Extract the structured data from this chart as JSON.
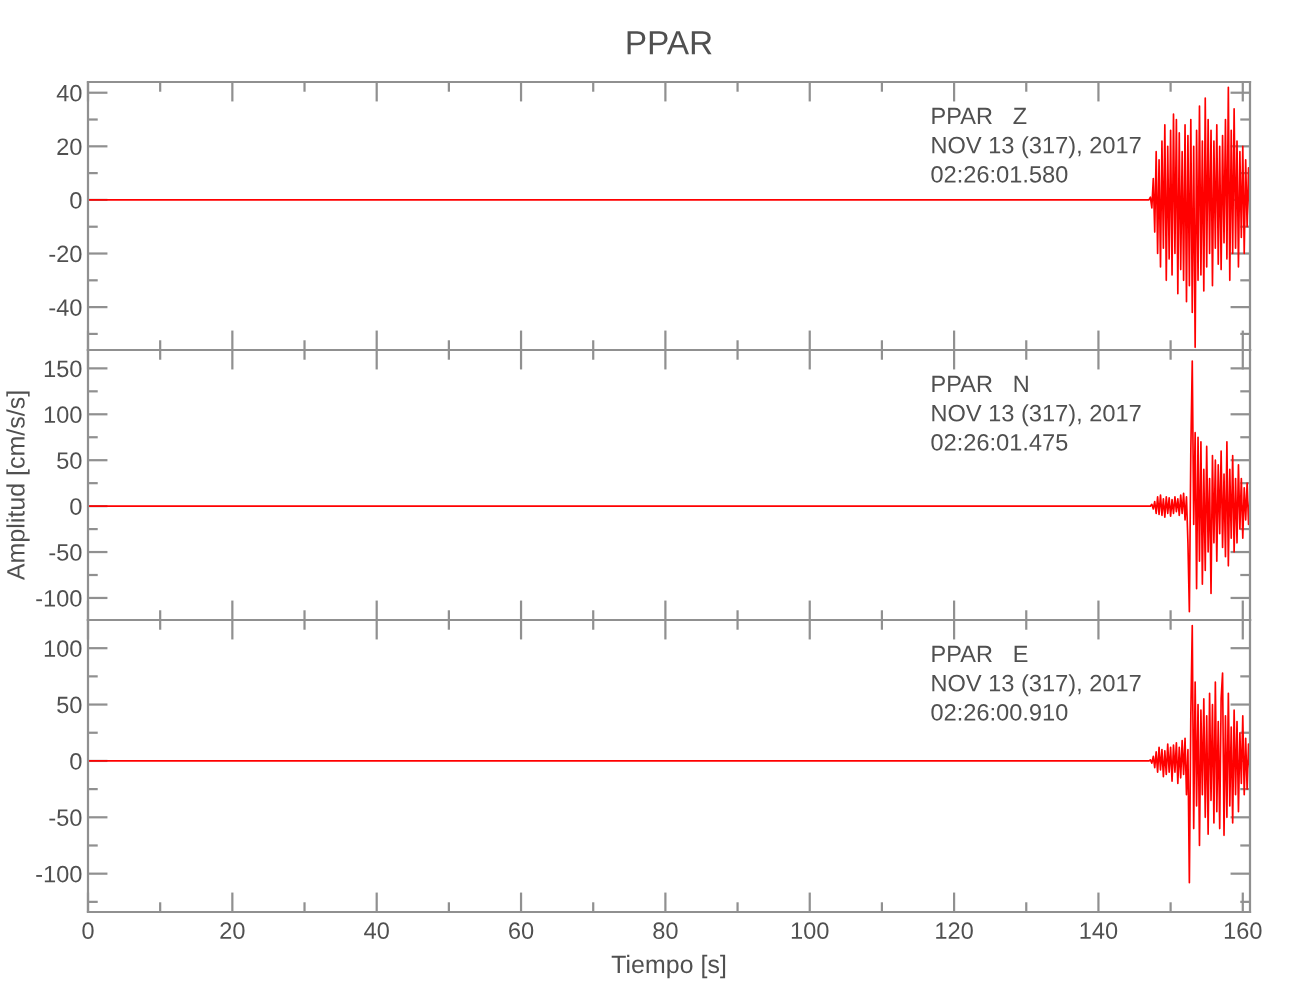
{
  "chart_data": [
    {
      "type": "line",
      "title": "PPAR",
      "x": [
        0,
        10,
        20,
        30,
        40,
        50,
        60,
        70,
        80,
        90,
        100,
        110,
        120,
        130,
        140,
        146,
        147,
        147.2,
        147.4,
        147.6,
        147.8,
        148,
        148.2,
        148.4,
        148.6,
        148.8,
        149,
        149.2,
        149.4,
        149.6,
        149.8,
        150,
        150.2,
        150.4,
        150.6,
        150.8,
        151,
        151.2,
        151.4,
        151.6,
        151.8,
        152,
        152.2,
        152.4,
        152.6,
        152.8,
        153,
        153.2,
        153.4,
        153.6,
        153.8,
        154,
        154.2,
        154.4,
        154.6,
        154.8,
        155,
        155.2,
        155.4,
        155.6,
        155.8,
        156,
        156.2,
        156.4,
        156.6,
        156.8,
        157,
        157.2,
        157.4,
        157.6,
        157.8,
        158,
        158.2,
        158.4,
        158.6,
        158.8,
        159,
        159.2,
        159.4,
        159.6,
        159.8,
        160,
        160.2,
        160.4,
        160.6,
        160.8,
        161
      ],
      "series": [
        {
          "color": "#ff0000",
          "values": [
            0,
            0,
            0,
            0,
            0,
            0,
            0,
            0,
            0,
            0,
            0,
            0,
            0,
            0,
            0,
            0,
            0,
            1,
            -3,
            8,
            -12,
            18,
            -20,
            15,
            -25,
            22,
            -18,
            28,
            -30,
            20,
            -22,
            26,
            -28,
            32,
            -20,
            30,
            -35,
            25,
            -26,
            18,
            -30,
            28,
            -38,
            24,
            -32,
            30,
            -42,
            20,
            -55,
            26,
            -30,
            35,
            -28,
            22,
            -34,
            38,
            -25,
            30,
            -20,
            26,
            -32,
            22,
            -18,
            28,
            -24,
            20,
            -26,
            24,
            -16,
            30,
            -22,
            42,
            -30,
            26,
            -20,
            34,
            -18,
            22,
            -25,
            18,
            -14,
            20,
            -20,
            15,
            -10,
            12,
            -8
          ]
        }
      ],
      "xlim": [
        0,
        161
      ],
      "xticks": [
        0,
        {
          "value": 10,
          "label": null
        },
        20,
        {
          "value": 30,
          "label": null
        },
        40,
        {
          "value": 50,
          "label": null
        },
        60,
        {
          "value": 70,
          "label": null
        },
        80,
        {
          "value": 90,
          "label": null
        },
        100,
        {
          "value": 110,
          "label": null
        },
        120,
        {
          "value": 130,
          "label": null
        },
        140,
        {
          "value": 150,
          "label": null
        },
        160
      ],
      "ylim": [
        -56,
        44
      ],
      "yticks": [
        {
          "value": -50,
          "label": null
        },
        -40,
        {
          "value": -30,
          "label": null
        },
        -20,
        {
          "value": -10,
          "label": null
        },
        0,
        {
          "value": 10,
          "label": null
        },
        20,
        {
          "value": 30,
          "label": null
        },
        40
      ],
      "tick_labels": "y",
      "annotations": [
        "PPAR   Z",
        "NOV 13 (317), 2017",
        "02:26:01.580"
      ]
    },
    {
      "type": "line",
      "ylabel": "Amplitud [cm/s/s]",
      "x": [
        0,
        10,
        20,
        30,
        40,
        50,
        60,
        70,
        80,
        90,
        100,
        110,
        120,
        130,
        140,
        146,
        147,
        147.2,
        147.4,
        147.6,
        147.8,
        148,
        148.2,
        148.4,
        148.6,
        148.8,
        149,
        149.2,
        149.4,
        149.6,
        149.8,
        150,
        150.2,
        150.4,
        150.6,
        150.8,
        151,
        151.2,
        151.4,
        151.6,
        151.8,
        152,
        152.2,
        152.4,
        152.6,
        152.8,
        153,
        153.2,
        153.4,
        153.6,
        153.8,
        154,
        154.2,
        154.4,
        154.6,
        154.8,
        155,
        155.2,
        155.4,
        155.6,
        155.8,
        156,
        156.2,
        156.4,
        156.6,
        156.8,
        157,
        157.2,
        157.4,
        157.6,
        157.8,
        158,
        158.2,
        158.4,
        158.6,
        158.8,
        159,
        159.2,
        159.4,
        159.6,
        159.8,
        160,
        160.2,
        160.4,
        160.6,
        160.8,
        161
      ],
      "series": [
        {
          "color": "#ff0000",
          "values": [
            0,
            0,
            0,
            0,
            0,
            0,
            0,
            0,
            0,
            0,
            0,
            0,
            0,
            0,
            0,
            0,
            0,
            0,
            2,
            -3,
            5,
            -8,
            10,
            -9,
            12,
            -10,
            8,
            -12,
            10,
            -8,
            9,
            -11,
            7,
            -8,
            10,
            -6,
            8,
            -10,
            12,
            -8,
            14,
            -15,
            10,
            -40,
            -115,
            60,
            158,
            -20,
            80,
            -90,
            75,
            -60,
            70,
            -85,
            40,
            -70,
            65,
            -50,
            30,
            -95,
            55,
            -40,
            50,
            -60,
            45,
            -30,
            60,
            -45,
            35,
            -55,
            70,
            -65,
            40,
            -35,
            55,
            -50,
            30,
            -40,
            45,
            -25,
            30,
            -35,
            20,
            -15,
            25,
            -20,
            10
          ]
        }
      ],
      "xlim": [
        0,
        161
      ],
      "xticks": [
        0,
        {
          "value": 10,
          "label": null
        },
        20,
        {
          "value": 30,
          "label": null
        },
        40,
        {
          "value": 50,
          "label": null
        },
        60,
        {
          "value": 70,
          "label": null
        },
        80,
        {
          "value": 90,
          "label": null
        },
        100,
        {
          "value": 110,
          "label": null
        },
        120,
        {
          "value": 130,
          "label": null
        },
        140,
        {
          "value": 150,
          "label": null
        },
        160
      ],
      "ylim": [
        -124,
        170
      ],
      "yticks": [
        -100,
        {
          "value": -75,
          "label": null
        },
        -50,
        {
          "value": -25,
          "label": null
        },
        0,
        {
          "value": 25,
          "label": null
        },
        50,
        {
          "value": 75,
          "label": null
        },
        100,
        {
          "value": 125,
          "label": null
        },
        150
      ],
      "tick_labels": "y",
      "annotations": [
        "PPAR   N",
        "NOV 13 (317), 2017",
        "02:26:01.475"
      ]
    },
    {
      "type": "line",
      "xlabel": "Tiempo [s]",
      "x": [
        0,
        10,
        20,
        30,
        40,
        50,
        60,
        70,
        80,
        90,
        100,
        110,
        120,
        130,
        140,
        146,
        147,
        147.2,
        147.4,
        147.6,
        147.8,
        148,
        148.2,
        148.4,
        148.6,
        148.8,
        149,
        149.2,
        149.4,
        149.6,
        149.8,
        150,
        150.2,
        150.4,
        150.6,
        150.8,
        151,
        151.2,
        151.4,
        151.6,
        151.8,
        152,
        152.2,
        152.4,
        152.6,
        152.8,
        153,
        153.2,
        153.4,
        153.6,
        153.8,
        154,
        154.2,
        154.4,
        154.6,
        154.8,
        155,
        155.2,
        155.4,
        155.6,
        155.8,
        156,
        156.2,
        156.4,
        156.6,
        156.8,
        157,
        157.2,
        157.4,
        157.6,
        157.8,
        158,
        158.2,
        158.4,
        158.6,
        158.8,
        159,
        159.2,
        159.4,
        159.6,
        159.8,
        160,
        160.2,
        160.4,
        160.6,
        160.8,
        161
      ],
      "series": [
        {
          "color": "#ff0000",
          "values": [
            0,
            0,
            0,
            0,
            0,
            0,
            0,
            0,
            0,
            0,
            0,
            0,
            0,
            0,
            0,
            0,
            0,
            1,
            -2,
            4,
            -6,
            8,
            -10,
            12,
            -8,
            10,
            -14,
            9,
            -12,
            15,
            -10,
            12,
            -18,
            14,
            -10,
            16,
            -20,
            12,
            -15,
            18,
            -12,
            20,
            -30,
            10,
            -108,
            40,
            120,
            -60,
            70,
            -40,
            50,
            -75,
            45,
            -30,
            55,
            -50,
            40,
            -65,
            60,
            -35,
            50,
            -55,
            70,
            -45,
            35,
            -60,
            55,
            78,
            -66,
            40,
            -50,
            60,
            -40,
            30,
            -55,
            45,
            -30,
            35,
            -45,
            25,
            -20,
            40,
            -30,
            20,
            -25,
            15,
            -10
          ]
        }
      ],
      "xlim": [
        0,
        161
      ],
      "xticks": [
        0,
        {
          "value": 10,
          "label": null
        },
        20,
        {
          "value": 30,
          "label": null
        },
        40,
        {
          "value": 50,
          "label": null
        },
        60,
        {
          "value": 70,
          "label": null
        },
        80,
        {
          "value": 90,
          "label": null
        },
        100,
        {
          "value": 110,
          "label": null
        },
        120,
        {
          "value": 130,
          "label": null
        },
        140,
        {
          "value": 150,
          "label": null
        },
        160
      ],
      "ylim": [
        -134,
        125
      ],
      "yticks": [
        {
          "value": -125,
          "label": null
        },
        -100,
        {
          "value": -75,
          "label": null
        },
        -50,
        {
          "value": -25,
          "label": null
        },
        0,
        {
          "value": 25,
          "label": null
        },
        50,
        {
          "value": 75,
          "label": null
        },
        100
      ],
      "annotations": [
        "PPAR   E",
        "NOV 13 (317), 2017",
        "02:26:00.910"
      ]
    }
  ]
}
